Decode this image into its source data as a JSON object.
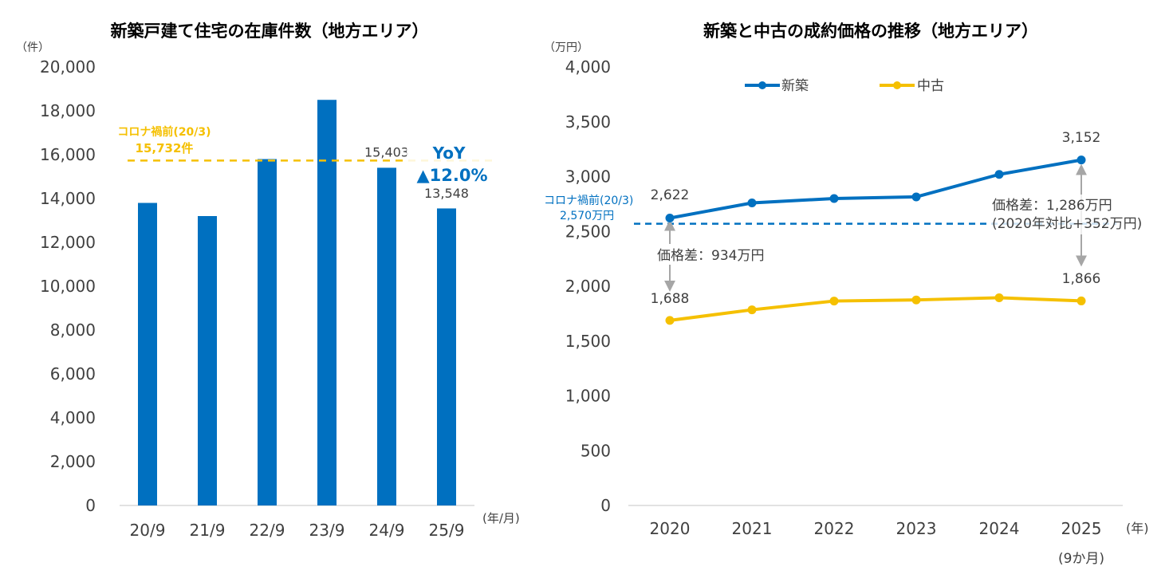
{
  "colors": {
    "blue": "#0070c0",
    "yellow": "#f5c000",
    "text": "#404040",
    "grey_arrow": "#a6a6a6",
    "axis": "#d9d9d9"
  },
  "chart_data": [
    {
      "type": "bar",
      "title": "新築戸建て住宅の在庫件数（地方エリア）",
      "y_unit": "（件）",
      "x_unit": "(年/月)",
      "categories": [
        "20/9",
        "21/9",
        "22/9",
        "23/9",
        "24/9",
        "25/9"
      ],
      "values": [
        13800,
        13200,
        15800,
        18500,
        15403,
        13548
      ],
      "ylim": [
        0,
        20000
      ],
      "yticks": [
        "0",
        "2,000",
        "4,000",
        "6,000",
        "8,000",
        "10,000",
        "12,000",
        "14,000",
        "16,000",
        "18,000",
        "20,000"
      ],
      "data_labels": {
        "4": "15,403",
        "5": "13,548"
      },
      "reference_line": {
        "value": 15732,
        "label_line1": "コロナ禍前(20/3)",
        "label_line2": "15,732件"
      },
      "yoy": {
        "title": "YoY",
        "value": "▲12.0%"
      },
      "grid": false
    },
    {
      "type": "line",
      "title": "新築と中古の成約価格の推移（地方エリア）",
      "y_unit": "（万円）",
      "x_unit": "(年)",
      "categories": [
        "2020",
        "2021",
        "2022",
        "2023",
        "2024",
        "2025"
      ],
      "category_sublabels": {
        "5": "(9か月)"
      },
      "series": [
        {
          "name": "新築",
          "color": "#0070c0",
          "values": [
            2622,
            2760,
            2800,
            2815,
            3020,
            3152
          ]
        },
        {
          "name": "中古",
          "color": "#f5c000",
          "values": [
            1688,
            1785,
            1865,
            1875,
            1895,
            1866
          ]
        }
      ],
      "ylim": [
        0,
        4000
      ],
      "yticks": [
        "0",
        "500",
        "1,000",
        "1,500",
        "2,000",
        "2,500",
        "3,000",
        "3,500",
        "4,000"
      ],
      "data_labels": {
        "new_first": "2,622",
        "new_last": "3,152",
        "used_first": "1,688",
        "used_last": "1,866"
      },
      "reference_line": {
        "value": 2570,
        "label_line1": "コロナ禍前(20/3)",
        "label_line2": "2,570万円"
      },
      "annotations": {
        "diff_2020": "価格差：934万円",
        "diff_2025_line1": "価格差：1,286万円",
        "diff_2025_line2": "(2020年対比+352万円)"
      },
      "legend_position": "top",
      "grid": false
    }
  ]
}
